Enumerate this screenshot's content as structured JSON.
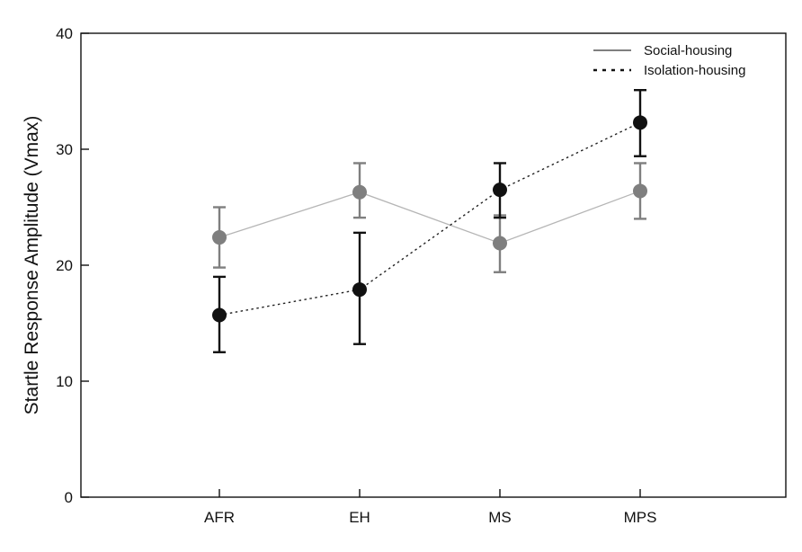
{
  "chart_data": {
    "type": "line",
    "title": "",
    "xlabel": "",
    "ylabel": "Startle Response Amplitude (Vmax)",
    "categories": [
      "AFR",
      "EH",
      "MS",
      "MPS"
    ],
    "ylim": [
      0,
      40
    ],
    "yticks": [
      0,
      10,
      20,
      30,
      40
    ],
    "grid": false,
    "legend_position": "top-right",
    "series": [
      {
        "name": "Social-housing",
        "line_style": "solid",
        "color": "#7f7f7f",
        "line_color": "#b5b5b5",
        "values": [
          22.4,
          26.3,
          21.9,
          26.4
        ],
        "error_low": [
          19.8,
          24.1,
          19.4,
          24.0
        ],
        "error_high": [
          25.0,
          28.8,
          24.3,
          28.8
        ]
      },
      {
        "name": "Isolation-housing",
        "line_style": "dotted",
        "color": "#111111",
        "line_color": "#222222",
        "values": [
          15.7,
          17.9,
          26.5,
          32.3
        ],
        "error_low": [
          12.5,
          13.2,
          24.1,
          29.4
        ],
        "error_high": [
          19.0,
          22.8,
          28.8,
          35.1
        ]
      }
    ]
  }
}
